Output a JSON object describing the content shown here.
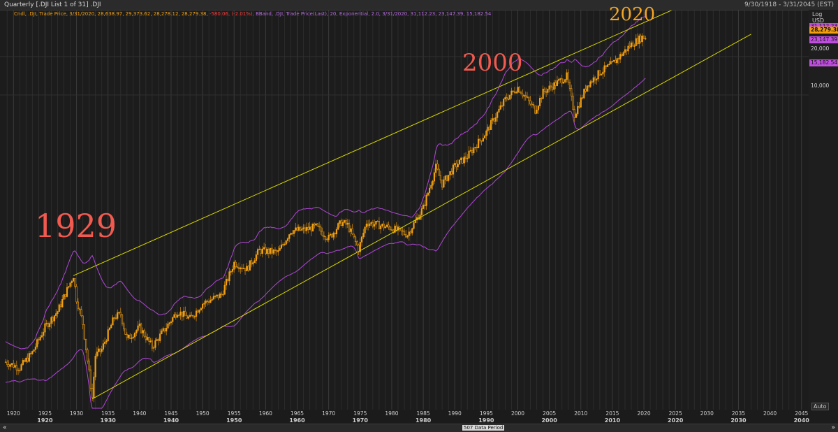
{
  "window": {
    "title": "Quarterly [.DJI List 1 of 31] .DJI",
    "date_range": "9/30/1918 - 3/31/2045 (EST)"
  },
  "legend": {
    "candle_text": "Cndl, .DJI, Trade Price, 3/31/2020, 28,638.97, 29,373.62, 28,278.12, 28,279.38,",
    "change_text": "-580.06, (-2.01%),",
    "bband_text": "BBand, .DJI, Trade Price(Last),  20, Exponential, 2.0, 3/31/2020, 31,112.23, 23,147.39, 15,182.54"
  },
  "right_axis": {
    "scale": "Log",
    "currency": "USD",
    "tags": [
      "31,112.23",
      "28,279.38",
      "23,147.39",
      "15,182.54"
    ],
    "ticks": [
      "20,000",
      "10,000"
    ],
    "auto_label": "Auto"
  },
  "annotations": [
    "1929",
    "2000",
    "2020"
  ],
  "x_axis": {
    "years": [
      "1920",
      "1925",
      "1930",
      "1935",
      "1940",
      "1945",
      "1950",
      "1955",
      "1960",
      "1965",
      "1970",
      "1975",
      "1980",
      "1985",
      "1990",
      "1995",
      "2000",
      "2005",
      "2010",
      "2015",
      "2020",
      "2025",
      "2030",
      "2035",
      "2040",
      "2045"
    ],
    "decades": [
      "1920",
      "1930",
      "1940",
      "1950",
      "1960",
      "1970",
      "1980",
      "1990",
      "2000",
      "2010",
      "2020",
      "2030",
      "2040"
    ]
  },
  "scrollbar": {
    "left_icon": "double-chevron-left-icon",
    "right_icon": "double-chevron-right-icon",
    "period_label": "507 Data Period"
  },
  "colors": {
    "candle": "#f2a011",
    "bband": "#b048d8",
    "trend": "#d8d800",
    "annot_red": "#f25a50",
    "annot_orange": "#f5a623"
  },
  "chart_data": {
    "type": "candlestick",
    "title": "",
    "scale": "log",
    "x_range": [
      "9/30/1918",
      "3/31/2045"
    ],
    "series": [
      {
        "name": "Cndl",
        "x": [
          1918.75,
          1921,
          1923,
          1925,
          1927,
          1929.5,
          1930,
          1931,
          1932.5,
          1933,
          1934,
          1936,
          1937,
          1938,
          1940,
          1942,
          1945,
          1946,
          1948,
          1950,
          1953,
          1955,
          1957,
          1959,
          1962,
          1964,
          1966,
          1968,
          1970,
          1972,
          1973,
          1974.75,
          1976,
          1980,
          1982.5,
          1985,
          1987,
          1988,
          1990,
          1992,
          1995,
          1998,
          2000,
          2002.75,
          2004,
          2007.75,
          2009,
          2011,
          2013,
          2015,
          2018,
          2019.75,
          2020.25
        ],
        "values": [
          80,
          72,
          95,
          150,
          200,
          381,
          250,
          160,
          42,
          90,
          100,
          180,
          190,
          120,
          150,
          105,
          170,
          200,
          175,
          230,
          270,
          480,
          430,
          600,
          580,
          860,
          870,
          920,
          750,
          1000,
          950,
          616,
          1000,
          900,
          800,
          1300,
          2700,
          2000,
          2750,
          3300,
          5100,
          9200,
          11500,
          7600,
          10500,
          14000,
          7000,
          12000,
          15000,
          17500,
          25000,
          28500,
          28279
        ]
      },
      {
        "name": "BBand",
        "values": [
          31112.23,
          23147.39,
          15182.54
        ]
      }
    ]
  }
}
